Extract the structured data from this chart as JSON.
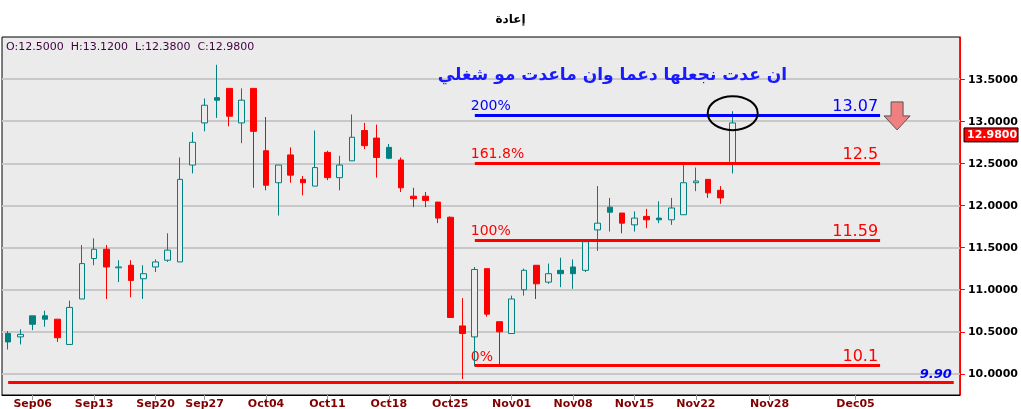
{
  "chart_data": {
    "type": "candlestick",
    "title": "إعادة",
    "categories": [
      null,
      null,
      "Sep06",
      null,
      null,
      null,
      null,
      "Sep13",
      null,
      null,
      null,
      null,
      "Sep20",
      null,
      null,
      null,
      "Sep27",
      null,
      null,
      null,
      null,
      "Oct04",
      null,
      null,
      null,
      null,
      "Oct11",
      null,
      null,
      null,
      null,
      "Oct18",
      null,
      null,
      null,
      null,
      "Oct25",
      null,
      null,
      null,
      null,
      "Nov01",
      null,
      null,
      null,
      null,
      "Nov08",
      null,
      null,
      null,
      null,
      "Nov15",
      null,
      null,
      null,
      null,
      "Nov22",
      null,
      null,
      null,
      null,
      null,
      "Nov28",
      null,
      null,
      null,
      null,
      null,
      null,
      "Dec05",
      null,
      null,
      null,
      null,
      null,
      null,
      null,
      null
    ],
    "ohlc": [
      [
        10.48,
        10.51,
        10.29,
        10.38
      ],
      [
        10.44,
        10.53,
        10.35,
        10.47
      ],
      [
        10.69,
        10.69,
        10.52,
        10.59
      ],
      [
        10.69,
        10.75,
        10.56,
        10.65
      ],
      [
        10.65,
        10.65,
        10.38,
        10.43
      ],
      [
        10.35,
        10.87,
        10.35,
        10.79
      ],
      [
        10.89,
        11.53,
        10.89,
        11.31
      ],
      [
        11.37,
        11.61,
        11.29,
        11.48
      ],
      [
        11.48,
        11.53,
        10.89,
        11.27
      ],
      [
        11.26,
        11.35,
        11.09,
        11.27
      ],
      [
        11.29,
        11.35,
        10.91,
        11.11
      ],
      [
        11.13,
        11.29,
        10.89,
        11.19
      ],
      [
        11.27,
        11.36,
        11.21,
        11.33
      ],
      [
        11.35,
        11.67,
        11.33,
        11.47
      ],
      [
        11.33,
        12.57,
        11.33,
        12.31
      ],
      [
        12.48,
        12.87,
        12.38,
        12.75
      ],
      [
        12.98,
        13.27,
        12.88,
        13.19
      ],
      [
        13.28,
        13.67,
        13.04,
        13.25
      ],
      [
        13.39,
        13.39,
        12.94,
        13.06
      ],
      [
        12.98,
        13.39,
        12.74,
        13.25
      ],
      [
        13.39,
        13.39,
        12.21,
        12.88
      ],
      [
        12.65,
        13.05,
        12.18,
        12.24
      ],
      [
        12.27,
        12.48,
        11.88,
        12.48
      ],
      [
        12.6,
        12.69,
        12.27,
        12.36
      ],
      [
        12.31,
        12.35,
        12.12,
        12.27
      ],
      [
        12.23,
        12.89,
        12.23,
        12.45
      ],
      [
        12.63,
        12.65,
        12.3,
        12.33
      ],
      [
        12.33,
        12.59,
        12.18,
        12.48
      ],
      [
        12.53,
        13.08,
        12.53,
        12.81
      ],
      [
        12.89,
        12.98,
        12.67,
        12.71
      ],
      [
        12.8,
        12.96,
        12.33,
        12.57
      ],
      [
        12.69,
        12.73,
        12.55,
        12.56
      ],
      [
        12.54,
        12.57,
        12.16,
        12.21
      ],
      [
        12.11,
        12.21,
        11.98,
        12.08
      ],
      [
        12.11,
        12.16,
        11.98,
        12.06
      ],
      [
        12.04,
        12.04,
        11.79,
        11.85
      ],
      [
        11.86,
        11.87,
        10.67,
        10.67
      ],
      [
        10.57,
        10.9,
        9.94,
        10.48
      ],
      [
        10.44,
        11.27,
        10.09,
        11.24
      ],
      [
        11.25,
        11.25,
        10.68,
        10.71
      ],
      [
        10.62,
        10.62,
        10.11,
        10.5
      ],
      [
        10.48,
        10.93,
        10.48,
        10.89
      ],
      [
        11.0,
        11.25,
        10.93,
        11.23
      ],
      [
        11.29,
        11.29,
        10.89,
        11.07
      ],
      [
        11.09,
        11.31,
        11.07,
        11.19
      ],
      [
        11.23,
        11.38,
        11.03,
        11.19
      ],
      [
        11.27,
        11.36,
        11.01,
        11.19
      ],
      [
        11.23,
        11.57,
        11.21,
        11.57
      ],
      [
        11.71,
        12.23,
        11.46,
        11.79
      ],
      [
        11.98,
        12.09,
        11.69,
        11.92
      ],
      [
        11.91,
        11.91,
        11.67,
        11.79
      ],
      [
        11.77,
        11.93,
        11.69,
        11.85
      ],
      [
        11.87,
        11.96,
        11.73,
        11.83
      ],
      [
        11.85,
        12.05,
        11.79,
        11.83
      ],
      [
        11.83,
        12.09,
        11.77,
        11.97
      ],
      [
        11.89,
        12.48,
        11.89,
        12.27
      ],
      [
        12.27,
        12.45,
        12.17,
        12.29
      ],
      [
        12.31,
        12.31,
        12.09,
        12.15
      ],
      [
        12.18,
        12.23,
        12.02,
        12.09
      ],
      [
        12.5,
        13.12,
        12.38,
        12.98
      ],
      null,
      null,
      null,
      null,
      null,
      null,
      null,
      null,
      null,
      null,
      null,
      null,
      null,
      null,
      null,
      null,
      null,
      null
    ],
    "colors": [
      "#008080",
      "#008080",
      "#008080",
      "#008080",
      "#ff0000",
      "#008080",
      "#008080",
      "#008080",
      "#ff0000",
      "#008080",
      "#ff0000",
      "#008080",
      "#008080",
      "#008080",
      "#008080",
      "#008080",
      "#008080",
      "#008080",
      "#ff0000",
      "#008080",
      "#ff0000",
      "#ff0000",
      "#008080",
      "#ff0000",
      "#ff0000",
      "#008080",
      "#ff0000",
      "#008080",
      "#008080",
      "#ff0000",
      "#ff0000",
      "#008080",
      "#ff0000",
      "#ff0000",
      "#ff0000",
      "#ff0000",
      "#ff0000",
      "#ff0000",
      "#008080",
      "#ff0000",
      "#ff0000",
      "#008080",
      "#008080",
      "#ff0000",
      "#008080",
      "#008080",
      "#008080",
      "#008080",
      "#008080",
      "#008080",
      "#ff0000",
      "#008080",
      "#ff0000",
      "#008080",
      "#008080",
      "#008080",
      "#008080",
      "#ff0000",
      "#ff0000",
      "#008080",
      null,
      null,
      null,
      null,
      null,
      null,
      null,
      null,
      null,
      null,
      null,
      null,
      null,
      null,
      null,
      null,
      null,
      null
    ],
    "ylim": [
      9.75,
      14.0
    ],
    "yticks": [
      {
        "value": 10,
        "label": "10.0000"
      },
      {
        "value": 10.5,
        "label": "10.5000"
      },
      {
        "value": 11,
        "label": "11.0000"
      },
      {
        "value": 11.5,
        "label": "11.5000"
      },
      {
        "value": 12,
        "label": "12.0000"
      },
      {
        "value": 12.5,
        "label": "12.5000"
      },
      {
        "value": 13,
        "label": "13.0000"
      },
      {
        "value": 13.5,
        "label": "13.5000"
      }
    ],
    "grid": "y",
    "ref_lines": [
      {
        "axis": "y",
        "value": 13.07,
        "label": "13.07",
        "color": "#0000ff"
      },
      {
        "axis": "y",
        "value": 12.5,
        "label": "12.5",
        "color": "#ff0000"
      },
      {
        "axis": "y",
        "value": 11.59,
        "label": "11.59",
        "color": "#ff0000"
      },
      {
        "axis": "y",
        "value": 10.1,
        "label": "10.1",
        "color": "#ff0000"
      },
      {
        "axis": "y",
        "value": 9.9,
        "label": "9.90",
        "color": "#ff0000"
      }
    ],
    "annotations": [
      "O:12.5000  H:13.1200  L:12.3800  C:12.9800",
      "ان عدت نجعلها دعما وان ماعدت مو شغلي",
      {
        "text": "200%",
        "y": 13.07
      },
      {
        "text": "161.8%",
        "y": 12.5
      },
      {
        "text": "100%",
        "y": 11.59
      },
      {
        "text": "0%",
        "y": 10.1
      },
      "12.9800"
    ]
  }
}
